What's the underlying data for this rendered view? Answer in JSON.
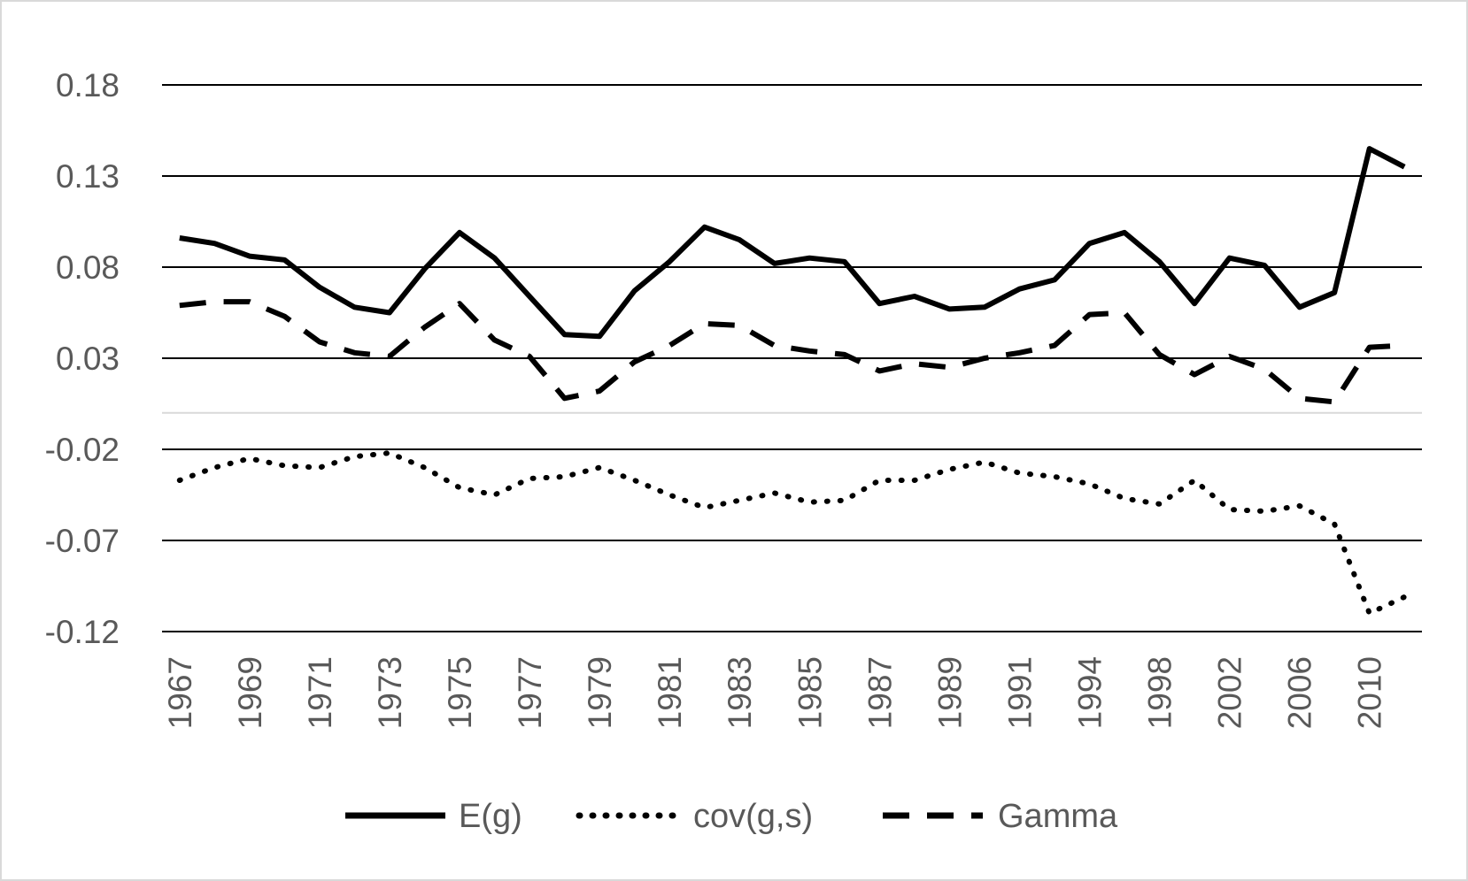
{
  "chart_data": {
    "type": "line",
    "title": "",
    "xlabel": "",
    "ylabel": "",
    "ylim": [
      -0.12,
      0.18
    ],
    "y_ticks": [
      "0.18",
      "0.13",
      "0.08",
      "0.03",
      "-0.02",
      "-0.07",
      "-0.12"
    ],
    "y_tick_values": [
      0.18,
      0.13,
      0.08,
      0.03,
      -0.02,
      -0.07,
      -0.12
    ],
    "x": [
      "1967",
      "1968",
      "1969",
      "1970",
      "1971",
      "1972",
      "1973",
      "1974",
      "1975",
      "1976",
      "1977",
      "1978",
      "1979",
      "1980",
      "1981",
      "1982",
      "1983",
      "1984",
      "1985",
      "1986",
      "1987",
      "1988",
      "1989",
      "1990",
      "1991",
      "1992",
      "1994",
      "1996",
      "1998",
      "2000",
      "2002",
      "2004",
      "2006",
      "2008",
      "2010",
      "2012"
    ],
    "x_tick_labels": [
      "1967",
      "1969",
      "1971",
      "1973",
      "1975",
      "1977",
      "1979",
      "1981",
      "1983",
      "1985",
      "1987",
      "1989",
      "1991",
      "1994",
      "1998",
      "2002",
      "2006",
      "2010"
    ],
    "grid": true,
    "legend_position": "bottom",
    "series": [
      {
        "name": "E(g)",
        "style": "solid",
        "values": [
          0.096,
          0.093,
          0.086,
          0.084,
          0.069,
          0.058,
          0.055,
          0.079,
          0.099,
          0.085,
          0.064,
          0.043,
          0.042,
          0.067,
          0.083,
          0.102,
          0.095,
          0.082,
          0.085,
          0.083,
          0.06,
          0.064,
          0.057,
          0.058,
          0.068,
          0.073,
          0.093,
          0.099,
          0.083,
          0.06,
          0.085,
          0.081,
          0.058,
          0.066,
          0.145,
          0.135
        ]
      },
      {
        "name": "cov(g,s)",
        "style": "dotted",
        "values": [
          -0.037,
          -0.03,
          -0.025,
          -0.029,
          -0.03,
          -0.024,
          -0.022,
          -0.03,
          -0.041,
          -0.045,
          -0.036,
          -0.035,
          -0.03,
          -0.037,
          -0.045,
          -0.052,
          -0.048,
          -0.044,
          -0.049,
          -0.048,
          -0.037,
          -0.037,
          -0.031,
          -0.027,
          -0.033,
          -0.035,
          -0.039,
          -0.047,
          -0.05,
          -0.037,
          -0.053,
          -0.054,
          -0.051,
          -0.061,
          -0.11,
          -0.101
        ]
      },
      {
        "name": "Gamma",
        "style": "dashed",
        "values": [
          0.059,
          0.061,
          0.061,
          0.053,
          0.039,
          0.033,
          0.031,
          0.047,
          0.06,
          0.04,
          0.031,
          0.008,
          0.012,
          0.028,
          0.037,
          0.049,
          0.048,
          0.037,
          0.034,
          0.032,
          0.023,
          0.027,
          0.025,
          0.03,
          0.033,
          0.037,
          0.054,
          0.055,
          0.032,
          0.021,
          0.031,
          0.024,
          0.008,
          0.006,
          0.036,
          0.037
        ]
      }
    ]
  }
}
